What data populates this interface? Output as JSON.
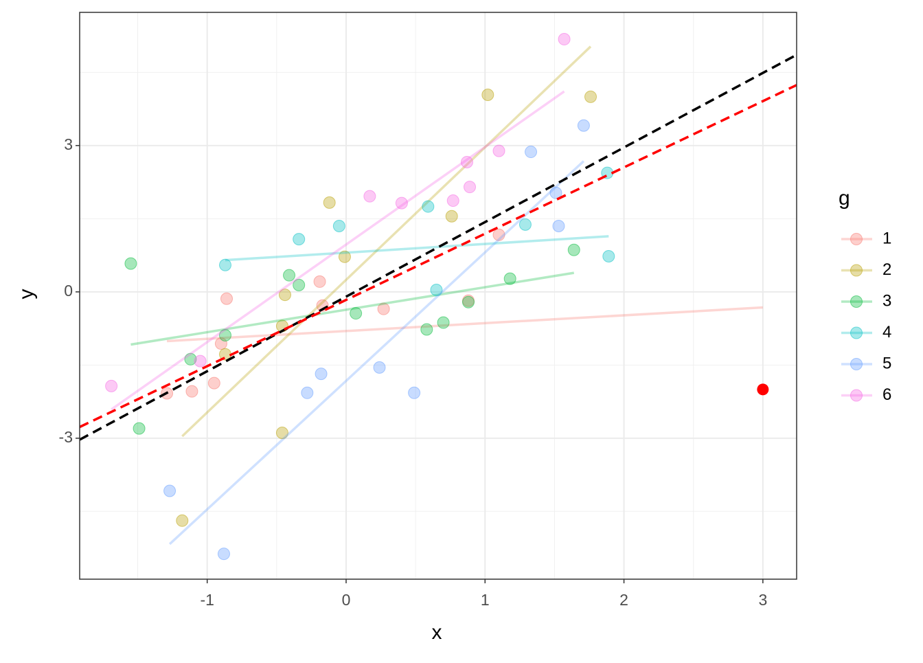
{
  "chart_data": {
    "type": "scatter",
    "x_label": "x",
    "y_label": "y",
    "legend_title": "g",
    "legend": "right",
    "grid": true,
    "xlim": [
      -1.918,
      3.243
    ],
    "ylim": [
      -5.89,
      5.73
    ],
    "xticks": [
      -1,
      0,
      1,
      2,
      3
    ],
    "yticks": [
      -3,
      0,
      3
    ],
    "xminor_ticks": [
      -1.5,
      -0.5,
      0.5,
      1.5,
      2.5
    ],
    "yminor_ticks": [
      -4.5,
      -1.5,
      1.5,
      4.5
    ],
    "series": [
      {
        "name": "1",
        "color": "#F8766D",
        "x": [
          -0.9,
          -0.86,
          -0.19,
          -0.17,
          0.27,
          1.1,
          0.88,
          -0.95,
          -1.11,
          -1.29
        ],
        "y": [
          -1.06,
          -0.14,
          0.21,
          -0.28,
          -0.35,
          1.17,
          -0.18,
          -1.87,
          -2.04,
          -2.08
        ],
        "fit_x": [
          -1.29,
          3.0
        ],
        "fit_y": [
          -1.01,
          -0.32
        ]
      },
      {
        "name": "2",
        "color": "#B79F00",
        "x": [
          -0.12,
          -0.01,
          -0.44,
          -0.46,
          -0.87,
          -0.46,
          -1.18,
          0.76,
          1.02,
          1.76
        ],
        "y": [
          1.83,
          0.72,
          -0.06,
          -0.7,
          -1.28,
          -2.89,
          -4.69,
          1.55,
          4.04,
          4.0
        ],
        "fit_x": [
          -1.18,
          1.76
        ],
        "fit_y": [
          -2.96,
          5.03
        ]
      },
      {
        "name": "3",
        "color": "#00BA38",
        "x": [
          -1.55,
          -1.49,
          -1.12,
          -0.87,
          -0.41,
          -0.34,
          0.07,
          0.58,
          0.7,
          1.18,
          1.64,
          0.88
        ],
        "y": [
          0.58,
          -2.8,
          -1.38,
          -0.89,
          0.34,
          0.14,
          -0.44,
          -0.77,
          -0.63,
          0.27,
          0.86,
          -0.21
        ],
        "fit_x": [
          -1.55,
          1.64
        ],
        "fit_y": [
          -1.08,
          0.39
        ]
      },
      {
        "name": "4",
        "color": "#00BFC4",
        "x": [
          -0.87,
          -0.34,
          -0.05,
          0.59,
          0.65,
          1.29,
          1.88,
          1.89
        ],
        "y": [
          0.55,
          1.08,
          1.35,
          1.75,
          0.04,
          1.38,
          2.44,
          0.73
        ],
        "fit_x": [
          -0.87,
          1.89
        ],
        "fit_y": [
          0.65,
          1.14
        ]
      },
      {
        "name": "5",
        "color": "#619CFF",
        "x": [
          -1.27,
          -0.88,
          -0.28,
          -0.18,
          0.24,
          0.49,
          1.33,
          1.51,
          1.53,
          1.71
        ],
        "y": [
          -4.08,
          -5.37,
          -2.07,
          -1.68,
          -1.55,
          -2.07,
          2.87,
          2.03,
          1.35,
          3.41
        ],
        "fit_x": [
          -1.27,
          1.71
        ],
        "fit_y": [
          -5.17,
          2.68
        ]
      },
      {
        "name": "6",
        "color": "#F564E3",
        "x": [
          -1.69,
          -1.05,
          0.17,
          0.4,
          0.77,
          0.87,
          0.89,
          1.1,
          1.57
        ],
        "y": [
          -1.93,
          -1.42,
          1.96,
          1.82,
          1.87,
          2.66,
          2.15,
          2.89,
          5.18
        ],
        "fit_x": [
          -1.69,
          1.57
        ],
        "fit_y": [
          -2.41,
          4.11
        ]
      }
    ],
    "reference_lines": [
      {
        "color": "#000000",
        "dashed": true,
        "x": [
          -1.918,
          3.243
        ],
        "y": [
          -3.03,
          4.86
        ]
      },
      {
        "color": "#FF0000",
        "dashed": true,
        "x": [
          -1.918,
          3.243
        ],
        "y": [
          -2.77,
          4.24
        ]
      }
    ],
    "extra_points": [
      {
        "color": "#FF0000",
        "x": 3.0,
        "y": -2.0
      }
    ]
  }
}
